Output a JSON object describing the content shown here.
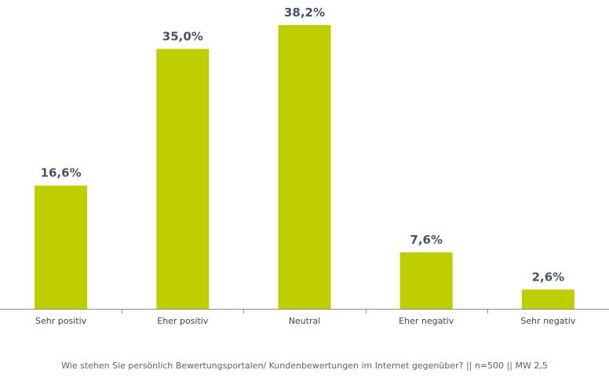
{
  "chart_data": {
    "type": "bar",
    "categories": [
      "Sehr positiv",
      "Eher positiv",
      "Neutral",
      "Eher negativ",
      "Sehr negativ"
    ],
    "values": [
      16.6,
      35.0,
      38.2,
      7.6,
      2.6
    ],
    "value_labels": [
      "16,6%",
      "35,0%",
      "38,2%",
      "7,6%",
      "2,6%"
    ],
    "ylim": [
      0,
      38.2
    ],
    "grid": false,
    "legend": "none"
  },
  "colors": {
    "bar": "#bfce00",
    "value_label": "#4a5563",
    "axis": "#8c8c8c",
    "category_label": "#3c4650"
  },
  "footnote": "Wie stehen Sie persönlich Bewertungsportalen/ Kundenbewertungen im Internet gegenüber? || n=500 || MW 2,5"
}
